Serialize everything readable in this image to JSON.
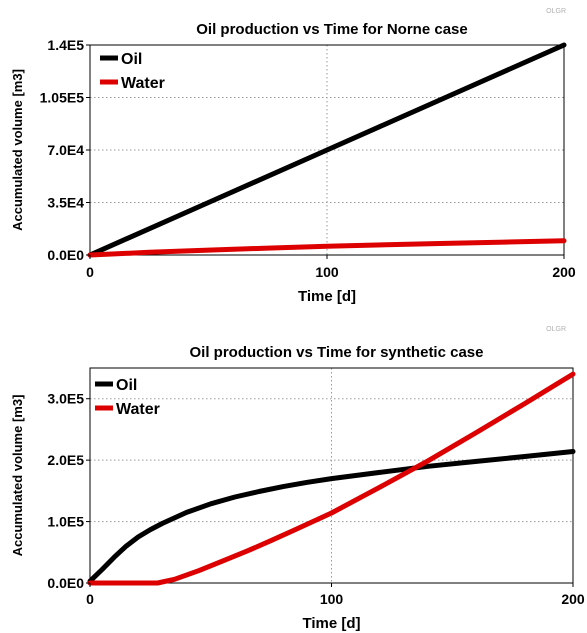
{
  "chart_data": [
    {
      "type": "line",
      "title": "Oil production vs Time for Norne case",
      "watermark": "OLGR",
      "xlabel": "Time [d]",
      "ylabel": "Accumulated volume [m3]",
      "xlim": [
        0,
        200
      ],
      "ylim": [
        0,
        140000
      ],
      "xticks": [
        0,
        100,
        200
      ],
      "xtick_labels": [
        "0",
        "100",
        "200"
      ],
      "yticks": [
        0,
        35000,
        70000,
        105000,
        140000
      ],
      "ytick_labels": [
        "0.0E0",
        "3.5E4",
        "7.0E4",
        "1.05E5",
        "1.4E5"
      ],
      "grid": true,
      "legend_position": "top-left",
      "series": [
        {
          "name": "Oil",
          "color": "#000000",
          "x": [
            0,
            50,
            100,
            150,
            200
          ],
          "y": [
            0,
            35000,
            70000,
            105000,
            140000
          ]
        },
        {
          "name": "Water",
          "color": "#dd0000",
          "x": [
            0,
            25,
            50,
            75,
            100,
            125,
            150,
            175,
            200
          ],
          "y": [
            0,
            1800,
            3300,
            4600,
            5800,
            6800,
            7700,
            8600,
            9500
          ]
        }
      ]
    },
    {
      "type": "line",
      "title": "Oil production vs Time for synthetic case",
      "watermark": "OLGR",
      "xlabel": "Time [d]",
      "ylabel": "Accumulated volume [m3]",
      "xlim": [
        0,
        200
      ],
      "ylim": [
        0,
        350000
      ],
      "xticks": [
        0,
        100,
        200
      ],
      "xtick_labels": [
        "0",
        "100",
        "200"
      ],
      "yticks": [
        0,
        100000,
        200000,
        300000
      ],
      "ytick_labels": [
        "0.0E0",
        "1.0E5",
        "2.0E5",
        "3.0E5"
      ],
      "grid": true,
      "legend_position": "top-left",
      "series": [
        {
          "name": "Oil",
          "color": "#000000",
          "x": [
            0,
            5,
            10,
            15,
            20,
            25,
            30,
            40,
            50,
            60,
            70,
            80,
            90,
            100,
            120,
            140,
            160,
            180,
            200
          ],
          "y": [
            3000,
            22000,
            42000,
            60000,
            75000,
            87000,
            97000,
            115000,
            129000,
            140000,
            149000,
            157000,
            164000,
            170000,
            180000,
            190000,
            198000,
            206000,
            214000
          ]
        },
        {
          "name": "Water",
          "color": "#dd0000",
          "x": [
            0,
            10,
            20,
            28,
            35,
            45,
            55,
            65,
            75,
            85,
            100,
            120,
            140,
            160,
            180,
            200
          ],
          "y": [
            0,
            0,
            0,
            0,
            6000,
            20000,
            36000,
            52000,
            69000,
            87000,
            114000,
            156000,
            199000,
            245000,
            292000,
            340000
          ]
        }
      ]
    }
  ]
}
